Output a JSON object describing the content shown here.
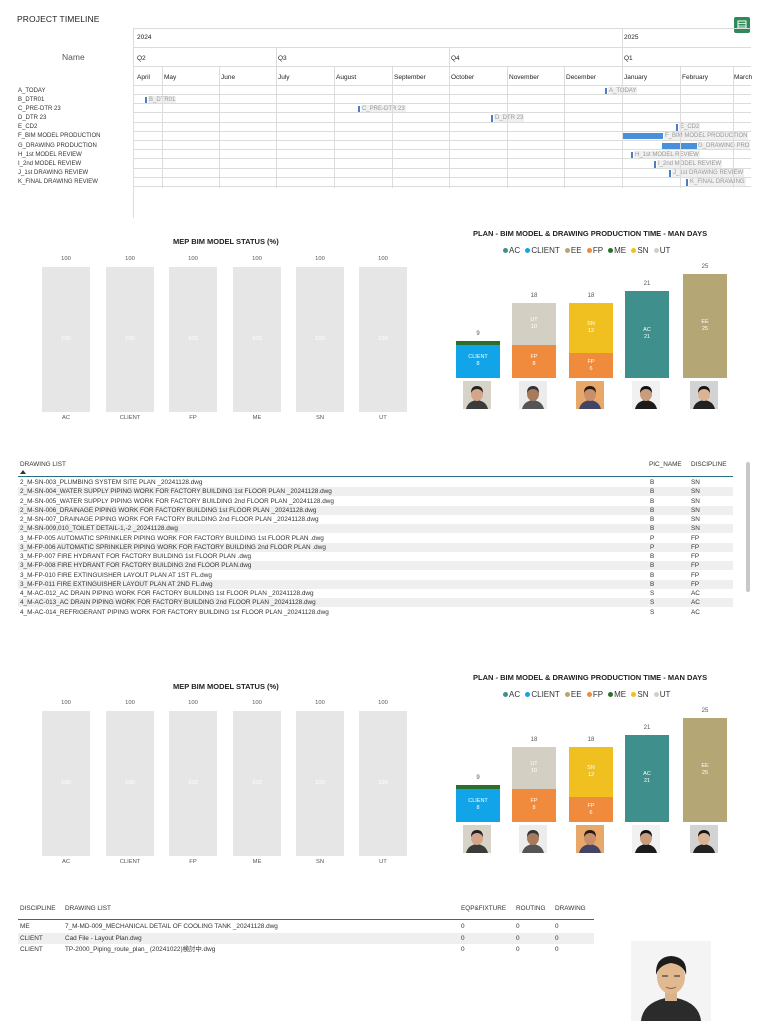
{
  "timeline": {
    "title": "PROJECT TIMELINE",
    "name_header": "Name",
    "years": [
      "2024",
      "2025"
    ],
    "quarters": [
      "Q2",
      "Q3",
      "Q4",
      "Q1"
    ],
    "months": [
      "April",
      "May",
      "June",
      "July",
      "August",
      "September",
      "October",
      "November",
      "December",
      "January",
      "February",
      "March"
    ],
    "rows": [
      {
        "name": "A_TODAY",
        "bar_label": "A_TODAY"
      },
      {
        "name": "B_DTR01",
        "bar_label": "B_DTR01"
      },
      {
        "name": "C_PRE-DTR 23",
        "bar_label": "C_PRE-DTR 23"
      },
      {
        "name": "D_DTR 23",
        "bar_label": "D_DTR 23"
      },
      {
        "name": "E_CD2",
        "bar_label": "E_CD2"
      },
      {
        "name": "F_BIM MODEL PRODUCTION",
        "bar_label": "F_BIM MODEL PRODUCTION"
      },
      {
        "name": "G_DRAWING PRODUCTION",
        "bar_label": "G_DRAWING PRO"
      },
      {
        "name": "H_1st MODEL REVIEW",
        "bar_label": "H_1st MODEL REVIEW"
      },
      {
        "name": "I_2nd MODEL REVIEW",
        "bar_label": "I_2nd MODEL REVIEW"
      },
      {
        "name": "J_1st DRAWING REVIEW",
        "bar_label": "J_1st DRAWING REVIEW"
      },
      {
        "name": "K_FINAL DRAWING REVIEW",
        "bar_label": "K_FINAL DRAWING"
      }
    ]
  },
  "status_charts": [
    {
      "title": "MEP BIM MODEL STATUS (%)",
      "categories": [
        "AC",
        "CLIENT",
        "FP",
        "ME",
        "SN",
        "UT"
      ],
      "values": [
        100,
        100,
        100,
        100,
        100,
        100
      ]
    },
    {
      "title": "MEP BIM MODEL STATUS (%)",
      "categories": [
        "AC",
        "CLIENT",
        "FP",
        "ME",
        "SN",
        "UT"
      ],
      "values": [
        100,
        100,
        100,
        100,
        100,
        100
      ]
    }
  ],
  "plan_charts": [
    {
      "title": "PLAN - BIM MODEL & DRAWING PRODUCTION TIME - MAN DAYS"
    },
    {
      "title": "PLAN - BIM MODEL & DRAWING PRODUCTION TIME - MAN DAYS"
    }
  ],
  "legend": [
    {
      "name": "AC",
      "color": "#3f8f8c"
    },
    {
      "name": "CLIENT",
      "color": "#12a4e8"
    },
    {
      "name": "EE",
      "color": "#b5a675"
    },
    {
      "name": "FP",
      "color": "#f08a3c"
    },
    {
      "name": "ME",
      "color": "#2c6e2c"
    },
    {
      "name": "SN",
      "color": "#f0c020"
    },
    {
      "name": "UT",
      "color": "#d3d0c3"
    }
  ],
  "chart_data": [
    {
      "type": "bar",
      "title": "MEP BIM MODEL STATUS (%)",
      "categories": [
        "AC",
        "CLIENT",
        "FP",
        "ME",
        "SN",
        "UT"
      ],
      "values": [
        100,
        100,
        100,
        100,
        100,
        100
      ],
      "ylim": [
        0,
        100
      ]
    },
    {
      "type": "bar",
      "title": "PLAN - BIM MODEL & DRAWING PRODUCTION TIME - MAN DAYS",
      "stacked": true,
      "columns": [
        {
          "total": 9,
          "segments": [
            {
              "series": "CLIENT",
              "value": 8
            },
            {
              "series": "ME",
              "value": 1
            }
          ]
        },
        {
          "total": 18,
          "segments": [
            {
              "series": "FP",
              "value": 8
            },
            {
              "series": "UT",
              "value": 10
            }
          ]
        },
        {
          "total": 18,
          "segments": [
            {
              "series": "FP",
              "value": 6
            },
            {
              "series": "SN",
              "value": 12
            }
          ]
        },
        {
          "total": 21,
          "segments": [
            {
              "series": "AC",
              "value": 21
            }
          ]
        },
        {
          "total": 25,
          "segments": [
            {
              "series": "EE",
              "value": 25
            }
          ]
        }
      ],
      "series": [
        "AC",
        "CLIENT",
        "EE",
        "FP",
        "ME",
        "SN",
        "UT"
      ]
    }
  ],
  "drawing_list": {
    "headers": [
      "DRAWING LIST",
      "PIC_NAME",
      "DISCIPLINE"
    ],
    "rows": [
      [
        "2_M-SN-003_PLUMBING SYSTEM SITE PLAN _20241128.dwg",
        "B",
        "SN"
      ],
      [
        "2_M-SN-004_WATER SUPPLY PIPING WORK FOR FACTORY BUILDING 1st FLOOR PLAN _20241128.dwg",
        "B",
        "SN"
      ],
      [
        "2_M-SN-005_WATER SUPPLY PIPING WORK FOR FACTORY BUILDING 2nd FLOOR PLAN _20241128.dwg",
        "B",
        "SN"
      ],
      [
        "2_M-SN-006_DRAINAGE PIPING WORK FOR FACTORY BUILDING 1st FLOOR PLAN _20241128.dwg",
        "B",
        "SN"
      ],
      [
        "2_M-SN-007_DRAINAGE PIPING WORK FOR FACTORY BUILDING 2nd FLOOR PLAN _20241128.dwg",
        "B",
        "SN"
      ],
      [
        "2_M-SN-009,010_TOILET DETAIL-1,-2 _20241128.dwg",
        "B",
        "SN"
      ],
      [
        "3_M-FP-005 AUTOMATIC SPRINKLER PIPING WORK FOR FACTORY BUILDING 1st FLOOR PLAN .dwg",
        "P",
        "FP"
      ],
      [
        "3_M-FP-006 AUTOMATIC SPRINKLER PIPING WORK FOR FACTORY BUILDING 2nd FLOOR PLAN .dwg",
        "P",
        "FP"
      ],
      [
        "3_M-FP-007 FIRE HYDRANT FOR FACTORY BUILDING 1st FLOOR PLAN .dwg",
        "B",
        "FP"
      ],
      [
        "3_M-FP-008 FIRE HYDRANT FOR FACTORY BUILDING 2nd FLOOR PLAN.dwg",
        "B",
        "FP"
      ],
      [
        "3_M-FP-010 FIRE EXTINGUISHER LAYOUT PLAN AT 1ST FL.dwg",
        "B",
        "FP"
      ],
      [
        "3_M-FP-011 FIRE EXTINGUISHER LAYOUT PLAN AT 2ND FL.dwg",
        "B",
        "FP"
      ],
      [
        "4_M-AC-012_AC DRAIN PIPING WORK FOR FACTORY BUILDING 1st FLOOR PLAN _20241128.dwg",
        "S",
        "AC"
      ],
      [
        "4_M-AC-013_AC DRAIN PIPING WORK FOR FACTORY BUILDING 2nd FLOOR PLAN _20241128.dwg",
        "S",
        "AC"
      ],
      [
        "4_M-AC-014_REFRIGERANT PIPING WORK FOR FACTORY BUILDING 1st FLOOR PLAN _20241128.dwg",
        "S",
        "AC"
      ]
    ]
  },
  "discipline_list": {
    "headers": [
      "DISCIPLINE",
      "DRAWING LIST",
      "EQP&FIXTURE",
      "ROUTING",
      "DRAWING"
    ],
    "rows": [
      [
        "ME",
        "7_M-MD-009_MECHANICAL DETAIL OF COOLING TANK _20241128.dwg",
        "0",
        "0",
        "0"
      ],
      [
        "CLIENT",
        "Cad File - Layout Plan.dwg",
        "0",
        "0",
        "0"
      ],
      [
        "CLIENT",
        "TP-2000_Piping_route_plan_ (20241022)検討中.dwg",
        "0",
        "0",
        "0"
      ]
    ]
  },
  "icons": {
    "top_right": "table-icon",
    "avatar": "person-photo-icon"
  }
}
